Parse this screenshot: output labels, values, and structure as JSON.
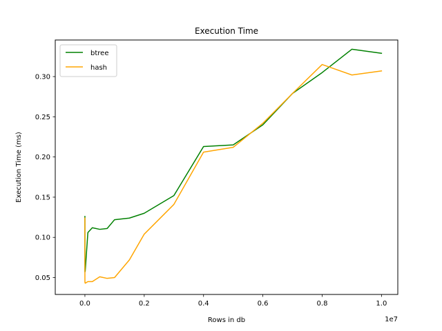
{
  "chart_data": {
    "type": "line",
    "title": "Execution Time",
    "xlabel": "Rows in db",
    "ylabel": "Execution Time (ms)",
    "x_offset_text": "1e7",
    "xlim": [
      -1000000,
      10550000
    ],
    "ylim": [
      0.029,
      0.3455
    ],
    "x_ticks": [
      0,
      2000000,
      4000000,
      6000000,
      8000000,
      10000000
    ],
    "x_tick_labels": [
      "0.0",
      "0.2",
      "0.4",
      "0.6",
      "0.8",
      "1.0"
    ],
    "y_ticks": [
      0.05,
      0.1,
      0.15,
      0.2,
      0.25,
      0.3
    ],
    "y_tick_labels": [
      "0.05",
      "0.10",
      "0.15",
      "0.20",
      "0.25",
      "0.30"
    ],
    "grid": false,
    "legend_position": "top-left",
    "series": [
      {
        "name": "btree",
        "color": "#008000",
        "x": [
          1,
          10,
          100,
          1000,
          10000,
          100000,
          250000,
          500000,
          750000,
          1000000,
          1500000,
          2000000,
          3000000,
          4000000,
          5000000,
          6000000,
          7000000,
          8000000,
          9000000,
          10000000
        ],
        "y": [
          0.126,
          0.124,
          0.06,
          0.057,
          0.058,
          0.106,
          0.112,
          0.11,
          0.111,
          0.122,
          0.124,
          0.13,
          0.152,
          0.213,
          0.215,
          0.24,
          0.279,
          0.305,
          0.334,
          0.329
        ]
      },
      {
        "name": "hash",
        "color": "#FFA500",
        "x": [
          1,
          10,
          100,
          1000,
          10000,
          100000,
          250000,
          500000,
          750000,
          1000000,
          1500000,
          2000000,
          3000000,
          4000000,
          5000000,
          6000000,
          7000000,
          8000000,
          9000000,
          10000000
        ],
        "y": [
          0.124,
          0.066,
          0.05,
          0.044,
          0.043,
          0.045,
          0.045,
          0.051,
          0.049,
          0.05,
          0.072,
          0.104,
          0.141,
          0.206,
          0.212,
          0.242,
          0.279,
          0.315,
          0.302,
          0.307
        ]
      }
    ]
  }
}
